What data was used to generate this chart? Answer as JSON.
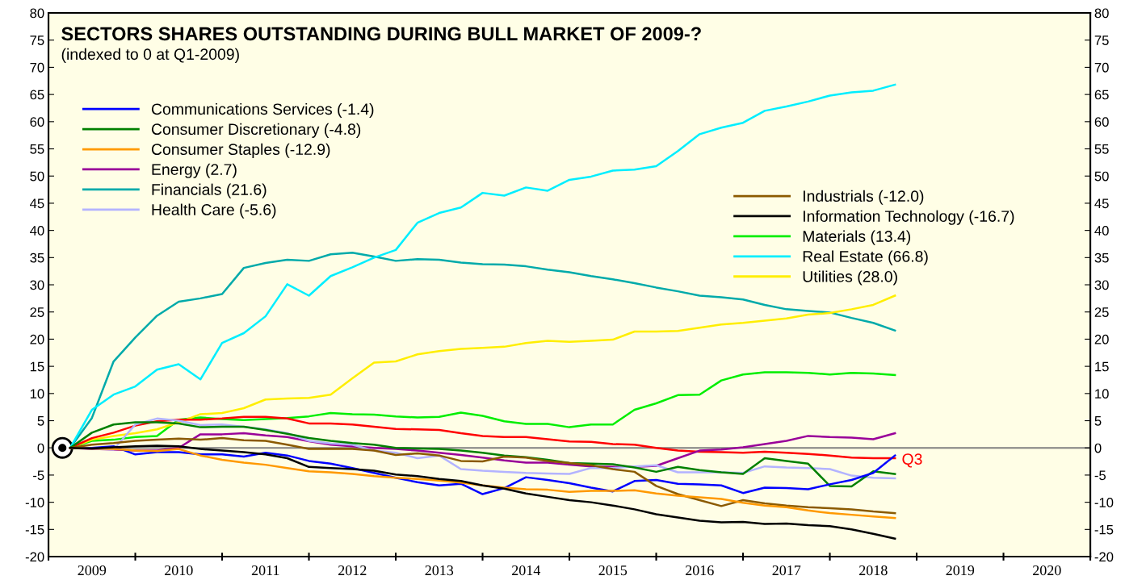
{
  "chart_data": {
    "type": "line",
    "title": "SECTORS SHARES OUTSTANDING DURING BULL MARKET OF 2009-?",
    "subtitle": "(indexed to 0 at Q1-2009)",
    "x": [
      2009.25,
      2009.5,
      2009.75,
      2010.0,
      2010.25,
      2010.5,
      2010.75,
      2011.0,
      2011.25,
      2011.5,
      2011.75,
      2012.0,
      2012.25,
      2012.5,
      2012.75,
      2013.0,
      2013.25,
      2013.5,
      2013.75,
      2014.0,
      2014.25,
      2014.5,
      2014.75,
      2015.0,
      2015.25,
      2015.5,
      2015.75,
      2016.0,
      2016.25,
      2016.5,
      2016.75,
      2017.0,
      2017.25,
      2017.5,
      2017.75,
      2018.0,
      2018.25,
      2018.5,
      2018.75
    ],
    "series": [
      {
        "color": "#ff0000",
        "values": [
          0,
          1.8,
          2.8,
          4.1,
          4.9,
          5.2,
          5.2,
          5.4,
          5.7,
          5.7,
          5.4,
          4.5,
          4.5,
          4.3,
          3.9,
          3.5,
          3.4,
          3.3,
          2.7,
          2.2,
          2.0,
          2.0,
          1.6,
          1.2,
          1.1,
          0.7,
          0.6,
          0.0,
          -0.5,
          -0.7,
          -0.8,
          -0.9,
          -0.7,
          -0.9,
          -1.1,
          -1.4,
          -1.8,
          -1.9,
          -1.9
        ]
      },
      {
        "name": "Communications Services (-1.4)",
        "color": "#0000ff",
        "values": [
          0,
          0.0,
          0.3,
          -1.2,
          -0.8,
          -0.8,
          -1.2,
          -1.2,
          -1.6,
          -0.9,
          -1.4,
          -2.4,
          -2.9,
          -3.7,
          -4.6,
          -5.5,
          -6.3,
          -6.9,
          -6.6,
          -8.5,
          -7.4,
          -5.4,
          -5.9,
          -6.5,
          -7.3,
          -8.0,
          -6.1,
          -5.9,
          -6.6,
          -6.7,
          -6.9,
          -8.3,
          -7.3,
          -7.4,
          -7.6,
          -6.7,
          -5.9,
          -4.6,
          -1.4
        ]
      },
      {
        "name": "Consumer Discretionary (-4.8)",
        "color": "#008000",
        "values": [
          0,
          2.8,
          4.3,
          4.7,
          4.7,
          4.5,
          3.8,
          3.9,
          3.9,
          3.3,
          2.6,
          1.8,
          1.3,
          0.9,
          0.6,
          0.0,
          -0.1,
          -0.2,
          -0.5,
          -0.9,
          -1.4,
          -1.7,
          -2.2,
          -2.8,
          -2.9,
          -3.0,
          -3.6,
          -4.4,
          -3.5,
          -4.1,
          -4.5,
          -4.8,
          -1.9,
          -2.4,
          -2.9,
          -7.0,
          -7.1,
          -4.3,
          -4.8
        ]
      },
      {
        "name": "Consumer Staples (-12.9)",
        "color": "#ff9900",
        "values": [
          0,
          -0.1,
          -0.2,
          -0.5,
          -0.6,
          -0.2,
          -1.4,
          -2.2,
          -2.7,
          -3.1,
          -3.7,
          -4.3,
          -4.5,
          -4.8,
          -5.2,
          -5.5,
          -5.7,
          -6.0,
          -6.4,
          -6.9,
          -7.3,
          -7.6,
          -7.7,
          -8.1,
          -7.9,
          -7.9,
          -7.8,
          -8.4,
          -8.8,
          -9.1,
          -9.4,
          -10.1,
          -10.6,
          -10.9,
          -11.5,
          -12.0,
          -12.3,
          -12.6,
          -12.9
        ]
      },
      {
        "name": "Energy (2.7)",
        "color": "#990099",
        "values": [
          0,
          -0.2,
          -0.3,
          -0.5,
          -0.5,
          0.0,
          2.5,
          2.5,
          2.7,
          2.3,
          2.0,
          1.2,
          0.6,
          0.3,
          0.0,
          -0.2,
          -0.5,
          -0.9,
          -1.3,
          -1.8,
          -2.3,
          -2.7,
          -2.7,
          -3.1,
          -3.4,
          -3.5,
          -3.5,
          -3.3,
          -1.9,
          -0.5,
          -0.3,
          0.1,
          0.7,
          1.3,
          2.2,
          2.0,
          1.9,
          1.6,
          2.7
        ]
      },
      {
        "name": "Financials (21.6)",
        "color": "#00aaaa",
        "values": [
          0,
          5.5,
          15.9,
          20.3,
          24.3,
          26.9,
          27.5,
          28.3,
          33.1,
          34.0,
          34.6,
          34.4,
          35.6,
          35.9,
          35.2,
          34.4,
          34.7,
          34.6,
          34.1,
          33.8,
          33.7,
          33.4,
          32.8,
          32.3,
          31.6,
          31.0,
          30.3,
          29.5,
          28.8,
          28.0,
          27.7,
          27.3,
          26.3,
          25.5,
          25.2,
          24.9,
          23.9,
          23.0,
          21.6
        ]
      },
      {
        "name": "Health Care (-5.6)",
        "color": "#b3b3ff",
        "values": [
          0,
          -0.1,
          -0.3,
          4.3,
          5.4,
          5.0,
          4.2,
          4.3,
          3.9,
          3.4,
          2.7,
          1.3,
          0.8,
          0.6,
          -0.5,
          -0.9,
          -1.9,
          -1.4,
          -3.9,
          -4.2,
          -4.4,
          -4.6,
          -4.7,
          -4.8,
          -3.7,
          -3.7,
          -3.4,
          -3.2,
          -4.5,
          -4.5,
          -4.5,
          -4.6,
          -3.4,
          -3.6,
          -3.7,
          -3.9,
          -5.1,
          -5.5,
          -5.6
        ]
      },
      {
        "name": "Industrials (-12.0)",
        "color": "#8b5a00",
        "values": [
          0,
          0.6,
          0.9,
          1.3,
          1.5,
          1.7,
          1.5,
          1.8,
          1.4,
          1.3,
          0.6,
          -0.2,
          -0.2,
          -0.2,
          -0.5,
          -1.3,
          -1.0,
          -1.4,
          -2.4,
          -2.5,
          -1.6,
          -1.8,
          -2.4,
          -2.8,
          -3.2,
          -3.9,
          -4.4,
          -7.0,
          -8.5,
          -9.6,
          -10.7,
          -9.6,
          -10.2,
          -10.6,
          -10.9,
          -11.1,
          -11.3,
          -11.7,
          -12.0
        ]
      },
      {
        "name": "Information Technology (-16.7)",
        "color": "#000000",
        "values": [
          0,
          -0.1,
          0.1,
          0.3,
          0.4,
          0.3,
          -0.2,
          -0.5,
          -0.8,
          -1.2,
          -1.9,
          -3.5,
          -3.7,
          -3.9,
          -4.2,
          -4.9,
          -5.2,
          -5.7,
          -6.1,
          -6.9,
          -7.5,
          -8.4,
          -9.0,
          -9.6,
          -10.0,
          -10.6,
          -11.3,
          -12.2,
          -12.8,
          -13.4,
          -13.7,
          -13.6,
          -14.0,
          -13.9,
          -14.2,
          -14.4,
          -15.0,
          -15.8,
          -16.7
        ]
      },
      {
        "name": "Materials (13.4)",
        "color": "#00ee00",
        "values": [
          0,
          1.3,
          1.5,
          2.0,
          2.2,
          5.2,
          5.6,
          5.3,
          5.1,
          5.3,
          5.5,
          5.8,
          6.4,
          6.2,
          6.1,
          5.8,
          5.6,
          5.7,
          6.5,
          5.9,
          4.9,
          4.4,
          4.4,
          3.8,
          4.3,
          4.3,
          7.0,
          8.2,
          9.7,
          9.8,
          12.4,
          13.5,
          13.9,
          13.9,
          13.8,
          13.5,
          13.8,
          13.7,
          13.4
        ]
      },
      {
        "name": "Real Estate (66.8)",
        "color": "#00eeff",
        "values": [
          0,
          7.0,
          9.8,
          11.3,
          14.4,
          15.4,
          12.6,
          19.3,
          21.1,
          24.2,
          30.1,
          28.0,
          31.6,
          33.2,
          35.0,
          36.4,
          41.4,
          43.2,
          44.2,
          46.9,
          46.4,
          47.9,
          47.3,
          49.3,
          49.9,
          51.0,
          51.2,
          51.8,
          54.6,
          57.7,
          58.9,
          59.8,
          62.0,
          62.8,
          63.7,
          64.8,
          65.4,
          65.7,
          66.8
        ]
      },
      {
        "name": "Utilities (28.0)",
        "color": "#ffee00",
        "values": [
          0,
          1.5,
          2.2,
          2.7,
          3.4,
          4.7,
          6.2,
          6.4,
          7.3,
          8.9,
          9.1,
          9.2,
          9.8,
          12.8,
          15.7,
          15.9,
          17.2,
          17.8,
          18.2,
          18.4,
          18.6,
          19.3,
          19.7,
          19.5,
          19.7,
          19.9,
          21.4,
          21.4,
          21.5,
          22.1,
          22.7,
          23.0,
          23.4,
          23.8,
          24.5,
          24.8,
          25.5,
          26.3,
          28.0
        ]
      }
    ],
    "xlim": [
      2009,
      2021
    ],
    "xticks": [
      {
        "value": 2009,
        "label": null
      },
      {
        "value": 2009.5,
        "label": "2009"
      },
      {
        "value": 2010,
        "label": null
      },
      {
        "value": 2010.5,
        "label": "2010"
      },
      {
        "value": 2011,
        "label": null
      },
      {
        "value": 2011.5,
        "label": "2011"
      },
      {
        "value": 2012,
        "label": null
      },
      {
        "value": 2012.5,
        "label": "2012"
      },
      {
        "value": 2013,
        "label": null
      },
      {
        "value": 2013.5,
        "label": "2013"
      },
      {
        "value": 2014,
        "label": null
      },
      {
        "value": 2014.5,
        "label": "2014"
      },
      {
        "value": 2015,
        "label": null
      },
      {
        "value": 2015.5,
        "label": "2015"
      },
      {
        "value": 2016,
        "label": null
      },
      {
        "value": 2016.5,
        "label": "2016"
      },
      {
        "value": 2017,
        "label": null
      },
      {
        "value": 2017.5,
        "label": "2017"
      },
      {
        "value": 2018,
        "label": null
      },
      {
        "value": 2018.5,
        "label": "2018"
      },
      {
        "value": 2019,
        "label": null
      },
      {
        "value": 2019.5,
        "label": "2019"
      },
      {
        "value": 2020,
        "label": null
      },
      {
        "value": 2020.5,
        "label": "2020"
      },
      {
        "value": 2021,
        "label": null
      }
    ],
    "ylim": [
      -20,
      80
    ],
    "yticks": [
      -20,
      -15,
      -10,
      -5,
      0,
      5,
      10,
      15,
      20,
      25,
      30,
      35,
      40,
      45,
      50,
      55,
      60,
      65,
      70,
      75,
      80
    ],
    "y2lim": [
      -20,
      80
    ],
    "y2ticks": [
      -20,
      -15,
      -10,
      -5,
      0,
      5,
      10,
      15,
      20,
      25,
      30,
      35,
      40,
      45,
      50,
      55,
      60,
      65,
      70,
      75,
      80
    ],
    "ref_lines": [
      {
        "axis": "y",
        "value": 0,
        "color": "#808080"
      }
    ],
    "annotations": [
      {
        "text": "Q3",
        "x": 2018.75,
        "y": -1.9
      }
    ],
    "grid": false,
    "legend": "top left",
    "marker": "none",
    "line_style": "solid"
  }
}
